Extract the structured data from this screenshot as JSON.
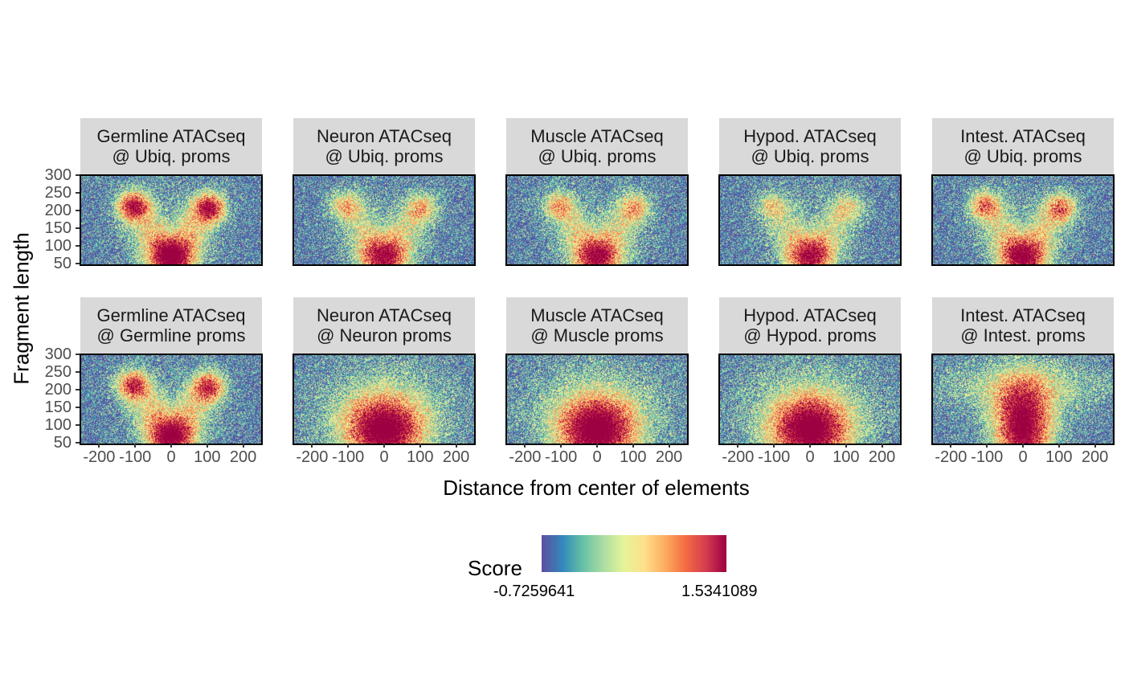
{
  "chart_data": {
    "type": "heatmap",
    "facet_layout": {
      "rows": 2,
      "cols": 5
    },
    "xlabel": "Distance from center of elements",
    "ylabel": "Fragment length",
    "x_ticks": [
      "-200",
      "-100",
      "0",
      "100",
      "200"
    ],
    "y_ticks": [
      "300",
      "250",
      "200",
      "150",
      "100",
      "50"
    ],
    "xlim": [
      -250,
      250
    ],
    "ylim": [
      50,
      300
    ],
    "legend": {
      "title": "Score",
      "min_label": "-0.7259641",
      "max_label": "1.5341089",
      "min": -0.7259641,
      "max": 1.5341089,
      "palette": [
        "#5e4fa2",
        "#3288bd",
        "#66c2a5",
        "#abdda4",
        "#e6f598",
        "#fee08b",
        "#fdae61",
        "#f46d43",
        "#d53e4f",
        "#9e0142"
      ],
      "placement": "bottom"
    },
    "panels": [
      {
        "line1": "Germline ATACseq",
        "line2": "@ Ubiq. proms",
        "pattern": "nucleosome",
        "strength": 1.0
      },
      {
        "line1": "Neuron ATACseq",
        "line2": "@ Ubiq. proms",
        "pattern": "nucleosome",
        "strength": 0.55
      },
      {
        "line1": "Muscle ATACseq",
        "line2": "@ Ubiq. proms",
        "pattern": "nucleosome",
        "strength": 0.6
      },
      {
        "line1": "Hypod. ATACseq",
        "line2": "@ Ubiq. proms",
        "pattern": "nucleosome",
        "strength": 0.45
      },
      {
        "line1": "Intest. ATACseq",
        "line2": "@ Ubiq. proms",
        "pattern": "nucleosome",
        "strength": 0.7
      },
      {
        "line1": "Germline ATACseq",
        "line2": "@ Germline proms",
        "pattern": "nucleosome",
        "strength": 0.9
      },
      {
        "line1": "Neuron ATACseq",
        "line2": "@ Neuron proms",
        "pattern": "broad",
        "strength": 0.85
      },
      {
        "line1": "Muscle ATACseq",
        "line2": "@ Muscle proms",
        "pattern": "broad",
        "strength": 1.0
      },
      {
        "line1": "Hypod. ATACseq",
        "line2": "@ Hypod. proms",
        "pattern": "broad",
        "strength": 0.95
      },
      {
        "line1": "Intest. ATACseq",
        "line2": "@ Intest. proms",
        "pattern": "broad_tall",
        "strength": 0.9
      }
    ]
  }
}
